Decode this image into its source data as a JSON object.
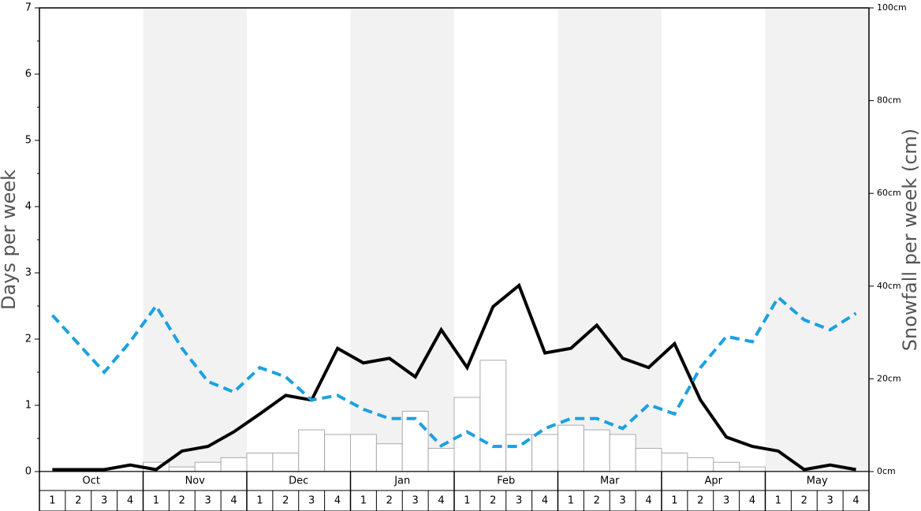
{
  "chart_data": {
    "type": "combo",
    "ylabel": "Days per week",
    "y2label": "Snowfall per week (cm)",
    "months": [
      "Oct",
      "Nov",
      "Dec",
      "Jan",
      "Feb",
      "Mar",
      "Apr",
      "May"
    ],
    "categories": [
      "1",
      "2",
      "3",
      "4",
      "1",
      "2",
      "3",
      "4",
      "1",
      "2",
      "3",
      "4",
      "1",
      "2",
      "3",
      "4",
      "1",
      "2",
      "3",
      "4",
      "1",
      "2",
      "3",
      "4",
      "1",
      "2",
      "3",
      "4",
      "1",
      "2",
      "3",
      "4"
    ],
    "ylim": [
      0,
      7
    ],
    "yticks": [
      0,
      1,
      2,
      3,
      4,
      5,
      6,
      7
    ],
    "y2lim": [
      0,
      100
    ],
    "y2ticks": [
      {
        "value": 0,
        "label": "0cm"
      },
      {
        "value": 20,
        "label": "20cm"
      },
      {
        "value": 40,
        "label": "40cm"
      },
      {
        "value": 60,
        "label": "60cm"
      },
      {
        "value": 80,
        "label": "80cm"
      },
      {
        "value": 100,
        "label": "100cm"
      }
    ],
    "shade_color": "#f2f2f2",
    "series": [
      {
        "type": "bar",
        "axis": "y2",
        "color": "#ffffff",
        "values": [
          0,
          0,
          0,
          0,
          2,
          1,
          2,
          3,
          4,
          4,
          9,
          8,
          8,
          6,
          13,
          5,
          16,
          24,
          8,
          8,
          10,
          9,
          8,
          5,
          4,
          3,
          2,
          1,
          0,
          0,
          0,
          0
        ]
      },
      {
        "type": "line",
        "color": "#000000",
        "values": [
          0.03,
          0.03,
          0.03,
          0.1,
          0.03,
          0.31,
          0.38,
          0.6,
          0.87,
          1.15,
          1.08,
          1.86,
          1.64,
          1.71,
          1.43,
          2.14,
          1.57,
          2.49,
          2.81,
          1.79,
          1.86,
          2.21,
          1.71,
          1.57,
          1.93,
          1.08,
          0.52,
          0.38,
          0.31,
          0.03,
          0.1,
          0.03
        ]
      },
      {
        "type": "line",
        "dashed": true,
        "color": "#1ba1e2",
        "values": [
          2.36,
          1.93,
          1.5,
          1.96,
          2.5,
          1.86,
          1.36,
          1.2,
          1.57,
          1.43,
          1.08,
          1.15,
          0.94,
          0.8,
          0.8,
          0.39,
          0.6,
          0.38,
          0.38,
          0.65,
          0.8,
          0.8,
          0.65,
          1.01,
          0.87,
          1.57,
          2.04,
          1.96,
          2.63,
          2.29,
          2.14,
          2.39
        ]
      }
    ]
  }
}
